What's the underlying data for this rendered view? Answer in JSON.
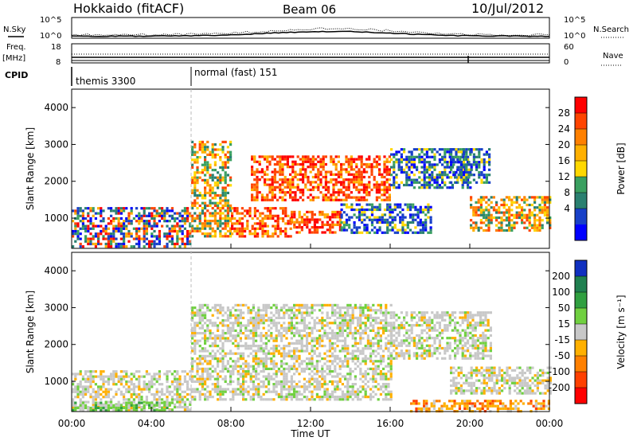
{
  "header": {
    "station": "Hokkaido (fitACF)",
    "beam": "Beam 06",
    "date": "10/Jul/2012"
  },
  "top_panels": {
    "nsky_label": "N.Sky",
    "nsearch_label": "N.Search",
    "nsky_ticks": [
      "10^5",
      "10^0"
    ],
    "nsearch_ticks": [
      "10^5",
      "10^0"
    ],
    "freq_label": "Freq.",
    "freq_unit": "[MHz]",
    "freq_ticks": [
      "18",
      "8"
    ],
    "nave_label": "Nave",
    "nave_ticks": [
      "60",
      "0"
    ],
    "cpid_label": "CPID",
    "cpid_segments": [
      {
        "label": "themis 3300",
        "start_hour": 0
      },
      {
        "label": "normal (fast) 151",
        "start_hour": 6
      }
    ]
  },
  "axes": {
    "xlabel": "Time UT",
    "x_ticks": [
      "00:00",
      "04:00",
      "08:00",
      "12:00",
      "16:00",
      "20:00",
      "00:00"
    ],
    "ylabel": "Slant Range [km]",
    "y_ticks": [
      "1000",
      "2000",
      "3000",
      "4000"
    ]
  },
  "power_scale": {
    "label": "Power [dB]",
    "ticks": [
      "28",
      "24",
      "20",
      "16",
      "12",
      "8",
      "4"
    ],
    "colors": [
      "#ff0000",
      "#ff4400",
      "#ff8000",
      "#ffb000",
      "#ffd800",
      "#3aa060",
      "#2a8070",
      "#1840c8",
      "#0000ff"
    ]
  },
  "velocity_scale": {
    "label": "Velocity [m s⁻¹]",
    "ticks": [
      "200",
      "100",
      "50",
      "15",
      "-15",
      "-50",
      "-100",
      "-200"
    ],
    "colors": [
      "#1030c0",
      "#208050",
      "#30a040",
      "#70d040",
      "#c8c8c8",
      "#ffb000",
      "#ff8000",
      "#ff4000",
      "#ff0000"
    ]
  },
  "chart_data": {
    "type": "heatmap",
    "x_range_hours": [
      0,
      24
    ],
    "y_range_km": [
      180,
      4500
    ],
    "power_regions": [
      {
        "t0": 0.0,
        "t1": 6.0,
        "r0": 200,
        "r1": 1300,
        "level": "mixed"
      },
      {
        "t0": 6.0,
        "t1": 8.0,
        "r0": 500,
        "r1": 3100,
        "level": "medium"
      },
      {
        "t0": 8.0,
        "t1": 11.0,
        "r0": 500,
        "r1": 1300,
        "level": "high"
      },
      {
        "t0": 9.0,
        "t1": 16.0,
        "r0": 1500,
        "r1": 2700,
        "level": "high"
      },
      {
        "t0": 11.0,
        "t1": 13.5,
        "r0": 600,
        "r1": 1200,
        "level": "high"
      },
      {
        "t0": 13.5,
        "t1": 18.0,
        "r0": 600,
        "r1": 1400,
        "level": "low"
      },
      {
        "t0": 16.0,
        "t1": 20.0,
        "r0": 1800,
        "r1": 2900,
        "level": "low"
      },
      {
        "t0": 20.0,
        "t1": 24.0,
        "r0": 700,
        "r1": 1600,
        "level": "medium"
      },
      {
        "t0": 19.0,
        "t1": 21.0,
        "r0": 2000,
        "r1": 2900,
        "level": "low"
      }
    ],
    "velocity_regions": [
      {
        "t0": 0.0,
        "t1": 6.0,
        "r0": 200,
        "r1": 1300,
        "level": "near-zero"
      },
      {
        "t0": 0.0,
        "t1": 5.0,
        "r0": 200,
        "r1": 450,
        "level": "positive-small"
      },
      {
        "t0": 6.0,
        "t1": 16.0,
        "r0": 500,
        "r1": 3100,
        "level": "near-zero"
      },
      {
        "t0": 16.0,
        "t1": 21.0,
        "r0": 1600,
        "r1": 2900,
        "level": "near-zero"
      },
      {
        "t0": 17.0,
        "t1": 24.0,
        "r0": 200,
        "r1": 500,
        "level": "negative"
      },
      {
        "t0": 19.0,
        "t1": 24.0,
        "r0": 700,
        "r1": 1400,
        "level": "near-zero"
      }
    ]
  }
}
